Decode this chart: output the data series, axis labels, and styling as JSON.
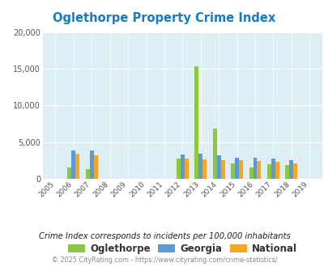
{
  "title": "Oglethorpe Property Crime Index",
  "years": [
    2005,
    2006,
    2007,
    2008,
    2009,
    2010,
    2011,
    2012,
    2013,
    2014,
    2015,
    2016,
    2017,
    2018,
    2019
  ],
  "oglethorpe": [
    0,
    1500,
    1300,
    0,
    0,
    0,
    0,
    2800,
    15300,
    6800,
    2100,
    1500,
    2000,
    1900,
    0
  ],
  "georgia": [
    0,
    3900,
    3900,
    0,
    0,
    0,
    0,
    3300,
    3400,
    3200,
    2900,
    2900,
    2800,
    2500,
    0
  ],
  "national": [
    0,
    3400,
    3200,
    0,
    0,
    0,
    0,
    2800,
    2700,
    2600,
    2500,
    2400,
    2300,
    2100,
    0
  ],
  "colors": {
    "oglethorpe": "#8dc63f",
    "georgia": "#5b9bd5",
    "national": "#f5a623"
  },
  "bg_color": "#ddeef5",
  "ylim": [
    0,
    20000
  ],
  "yticks": [
    0,
    5000,
    10000,
    15000,
    20000
  ],
  "subtitle": "Crime Index corresponds to incidents per 100,000 inhabitants",
  "footer": "© 2025 CityRating.com - https://www.cityrating.com/crime-statistics/",
  "title_color": "#1a7abf",
  "subtitle_color": "#222222",
  "footer_color": "#888888",
  "bar_width": 0.22
}
